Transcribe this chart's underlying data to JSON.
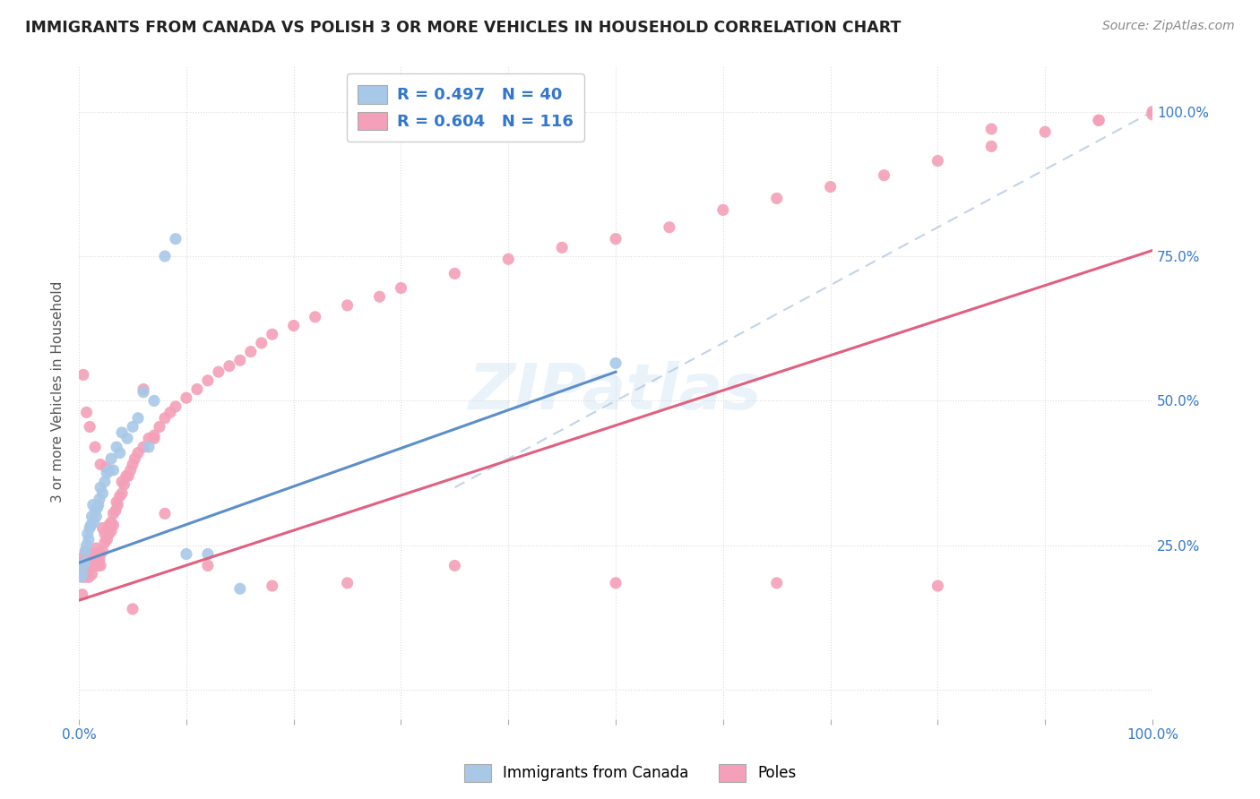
{
  "title": "IMMIGRANTS FROM CANADA VS POLISH 3 OR MORE VEHICLES IN HOUSEHOLD CORRELATION CHART",
  "source": "Source: ZipAtlas.com",
  "ylabel": "3 or more Vehicles in Household",
  "legend_label_blue": "Immigrants from Canada",
  "legend_label_pink": "Poles",
  "R_blue": 0.497,
  "N_blue": 40,
  "R_pink": 0.604,
  "N_pink": 116,
  "color_blue": "#a8c8e8",
  "color_pink": "#f4a0b8",
  "color_blue_line": "#5b8fc9",
  "color_pink_line": "#e06080",
  "color_dashed_line": "#b8cce4",
  "watermark": "ZIPatlas",
  "blue_x": [
    0.002,
    0.003,
    0.004,
    0.005,
    0.006,
    0.007,
    0.008,
    0.009,
    0.01,
    0.011,
    0.012,
    0.013,
    0.014,
    0.015,
    0.016,
    0.017,
    0.018,
    0.019,
    0.02,
    0.022,
    0.024,
    0.026,
    0.028,
    0.03,
    0.032,
    0.035,
    0.038,
    0.04,
    0.045,
    0.05,
    0.055,
    0.06,
    0.065,
    0.07,
    0.08,
    0.09,
    0.1,
    0.12,
    0.15,
    0.5
  ],
  "blue_y": [
    0.195,
    0.2,
    0.215,
    0.22,
    0.24,
    0.25,
    0.27,
    0.26,
    0.28,
    0.285,
    0.3,
    0.32,
    0.29,
    0.31,
    0.3,
    0.315,
    0.32,
    0.33,
    0.35,
    0.34,
    0.36,
    0.375,
    0.38,
    0.4,
    0.38,
    0.42,
    0.41,
    0.445,
    0.435,
    0.455,
    0.47,
    0.515,
    0.42,
    0.5,
    0.75,
    0.78,
    0.235,
    0.235,
    0.175,
    0.565
  ],
  "pink_x": [
    0.001,
    0.002,
    0.003,
    0.004,
    0.005,
    0.005,
    0.006,
    0.006,
    0.007,
    0.007,
    0.008,
    0.008,
    0.009,
    0.009,
    0.01,
    0.01,
    0.011,
    0.011,
    0.012,
    0.012,
    0.013,
    0.013,
    0.014,
    0.014,
    0.015,
    0.015,
    0.016,
    0.016,
    0.017,
    0.017,
    0.018,
    0.018,
    0.019,
    0.02,
    0.02,
    0.022,
    0.022,
    0.024,
    0.024,
    0.026,
    0.026,
    0.028,
    0.028,
    0.03,
    0.03,
    0.032,
    0.032,
    0.034,
    0.035,
    0.036,
    0.038,
    0.04,
    0.04,
    0.042,
    0.044,
    0.046,
    0.048,
    0.05,
    0.052,
    0.055,
    0.06,
    0.065,
    0.07,
    0.075,
    0.08,
    0.085,
    0.09,
    0.1,
    0.11,
    0.12,
    0.13,
    0.14,
    0.15,
    0.16,
    0.17,
    0.18,
    0.2,
    0.22,
    0.25,
    0.28,
    0.3,
    0.35,
    0.4,
    0.45,
    0.5,
    0.55,
    0.6,
    0.65,
    0.7,
    0.75,
    0.8,
    0.85,
    0.9,
    0.95,
    1.0,
    1.0,
    0.95,
    0.85,
    0.003,
    0.05,
    0.08,
    0.12,
    0.18,
    0.25,
    0.35,
    0.5,
    0.65,
    0.8,
    0.004,
    0.007,
    0.01,
    0.015,
    0.02,
    0.025,
    0.07,
    0.06
  ],
  "pink_y": [
    0.215,
    0.22,
    0.2,
    0.23,
    0.195,
    0.22,
    0.21,
    0.24,
    0.2,
    0.22,
    0.215,
    0.23,
    0.195,
    0.22,
    0.21,
    0.23,
    0.215,
    0.22,
    0.2,
    0.215,
    0.225,
    0.235,
    0.22,
    0.215,
    0.225,
    0.235,
    0.215,
    0.245,
    0.22,
    0.235,
    0.215,
    0.22,
    0.225,
    0.235,
    0.215,
    0.24,
    0.28,
    0.255,
    0.27,
    0.275,
    0.26,
    0.285,
    0.27,
    0.275,
    0.29,
    0.285,
    0.305,
    0.31,
    0.325,
    0.32,
    0.335,
    0.34,
    0.36,
    0.355,
    0.37,
    0.37,
    0.38,
    0.39,
    0.4,
    0.41,
    0.42,
    0.435,
    0.44,
    0.455,
    0.47,
    0.48,
    0.49,
    0.505,
    0.52,
    0.535,
    0.55,
    0.56,
    0.57,
    0.585,
    0.6,
    0.615,
    0.63,
    0.645,
    0.665,
    0.68,
    0.695,
    0.72,
    0.745,
    0.765,
    0.78,
    0.8,
    0.83,
    0.85,
    0.87,
    0.89,
    0.915,
    0.94,
    0.965,
    0.985,
    1.0,
    0.995,
    0.985,
    0.97,
    0.165,
    0.14,
    0.305,
    0.215,
    0.18,
    0.185,
    0.215,
    0.185,
    0.185,
    0.18,
    0.545,
    0.48,
    0.455,
    0.42,
    0.39,
    0.385,
    0.435,
    0.52
  ],
  "blue_line_x0": 0.0,
  "blue_line_y0": 0.22,
  "blue_line_x1": 0.5,
  "blue_line_y1": 0.55,
  "pink_line_x0": 0.0,
  "pink_line_y0": 0.155,
  "pink_line_x1": 1.0,
  "pink_line_y1": 0.76,
  "dash_line_x0": 0.35,
  "dash_line_y0": 0.35,
  "dash_line_x1": 1.0,
  "dash_line_y1": 1.0,
  "xlim": [
    0.0,
    1.0
  ],
  "ylim": [
    -0.05,
    1.08
  ],
  "figsize": [
    14.06,
    8.92
  ],
  "dpi": 100
}
